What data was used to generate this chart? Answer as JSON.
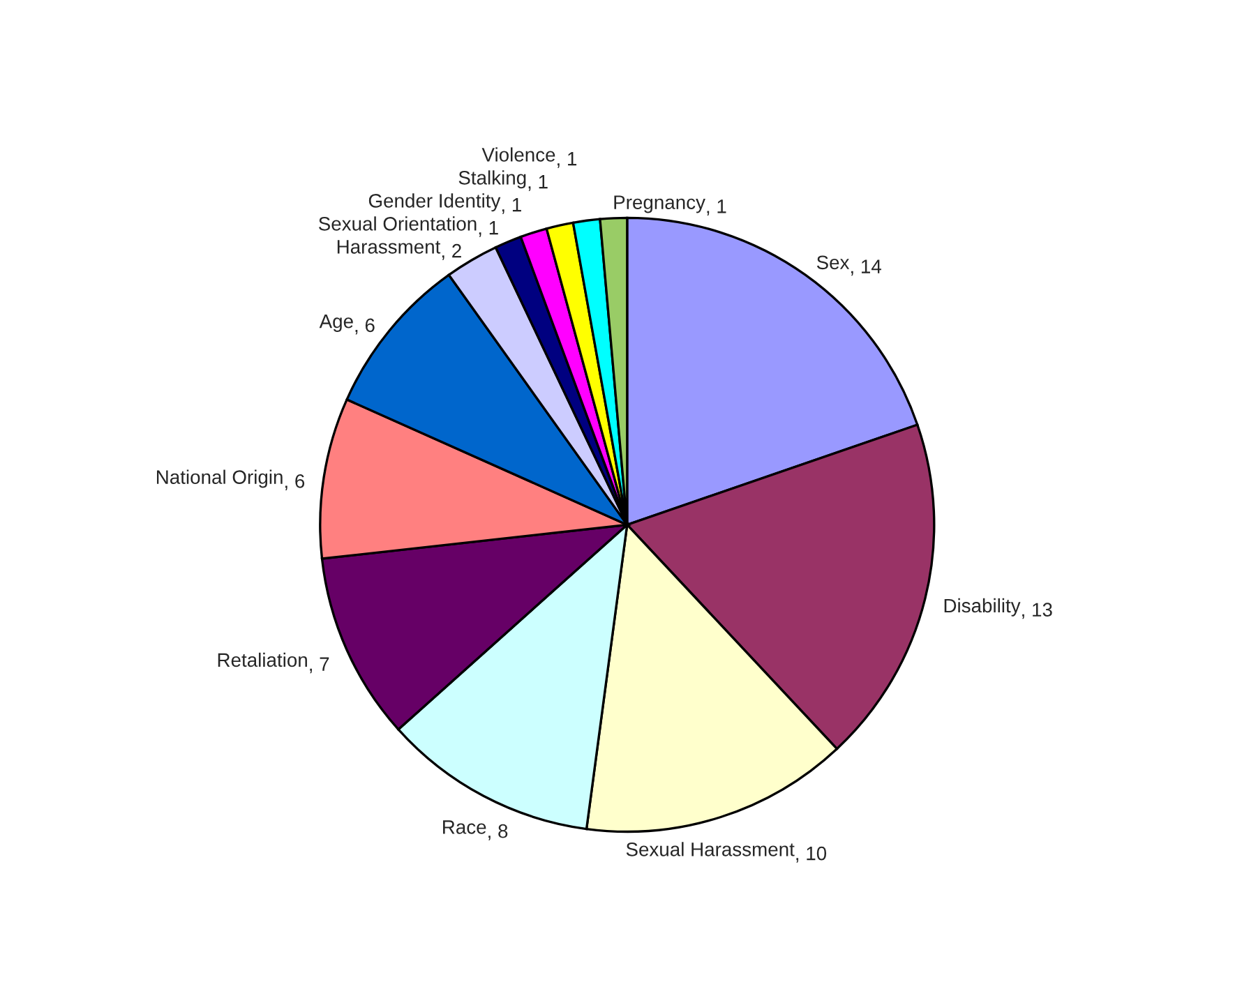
{
  "chart_data": {
    "type": "pie",
    "categories": [
      "Sex",
      "Disability",
      "Sexual Harassment",
      "Race",
      "Retaliation",
      "National Origin",
      "Age",
      "Harassment",
      "Sexual Orientation",
      "Gender Identity",
      "Stalking",
      "Violence",
      "Pregnancy"
    ],
    "values": [
      14,
      13,
      10,
      8,
      7,
      6,
      6,
      2,
      1,
      1,
      1,
      1,
      1
    ],
    "colors": [
      "#9999ff",
      "#993366",
      "#ffffcc",
      "#ccffff",
      "#660066",
      "#ff8080",
      "#0066cc",
      "#ccccff",
      "#000080",
      "#ff00ff",
      "#ffff00",
      "#00ffff",
      "#99cc66"
    ],
    "value_labels": [
      ", 14",
      ", 13",
      ", 10",
      ", 8",
      ", 7",
      ", 6",
      ", 6",
      ", 2",
      ", 1",
      ", 1",
      ", 1",
      ", 1",
      ", 1"
    ],
    "data_labels": true,
    "legend": false
  }
}
